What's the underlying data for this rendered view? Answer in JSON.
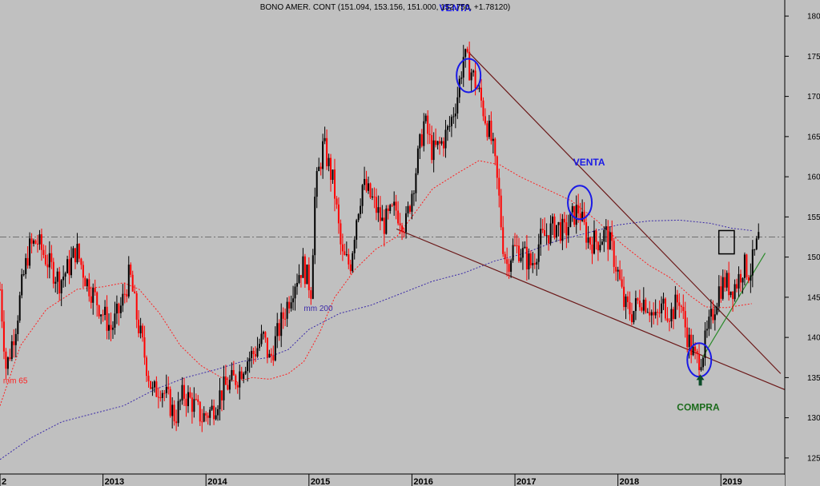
{
  "chart_data": {
    "type": "candlestick",
    "title": "BONO AMER. CONT (151.094, 153.156, 151.000, 152.750, +1.78120)",
    "ylim": [
      123,
      182
    ],
    "y_ticks": [
      125,
      130,
      135,
      140,
      145,
      150,
      155,
      160,
      165,
      170,
      175,
      180
    ],
    "x_ticks": [
      {
        "label": "2",
        "t": 2012.0
      },
      {
        "label": "2013",
        "t": 2013.0
      },
      {
        "label": "2014",
        "t": 2014.0
      },
      {
        "label": "2015",
        "t": 2015.0
      },
      {
        "label": "2016",
        "t": 2016.0
      },
      {
        "label": "2017",
        "t": 2017.0
      },
      {
        "label": "2018",
        "t": 2018.0
      },
      {
        "label": "2019",
        "t": 2019.0
      }
    ],
    "xlim": [
      2012.0,
      2019.62
    ],
    "reference_level": 152.5,
    "price_anchors": [
      [
        2012.0,
        146
      ],
      [
        2012.06,
        136
      ],
      [
        2012.16,
        142
      ],
      [
        2012.22,
        147
      ],
      [
        2012.28,
        151
      ],
      [
        2012.36,
        152
      ],
      [
        2012.48,
        149
      ],
      [
        2012.58,
        147
      ],
      [
        2012.68,
        149
      ],
      [
        2012.74,
        151
      ],
      [
        2012.84,
        147
      ],
      [
        2012.96,
        144
      ],
      [
        2013.08,
        141
      ],
      [
        2013.18,
        144
      ],
      [
        2013.26,
        148
      ],
      [
        2013.32,
        143
      ],
      [
        2013.4,
        138
      ],
      [
        2013.48,
        133
      ],
      [
        2013.56,
        134
      ],
      [
        2013.64,
        132
      ],
      [
        2013.7,
        130
      ],
      [
        2013.78,
        133
      ],
      [
        2013.86,
        132
      ],
      [
        2013.96,
        130
      ],
      [
        2014.06,
        131
      ],
      [
        2014.14,
        133
      ],
      [
        2014.2,
        134
      ],
      [
        2014.3,
        135
      ],
      [
        2014.38,
        137
      ],
      [
        2014.46,
        138
      ],
      [
        2014.56,
        140
      ],
      [
        2014.62,
        137
      ],
      [
        2014.66,
        139
      ],
      [
        2014.76,
        143
      ],
      [
        2014.86,
        147
      ],
      [
        2014.94,
        149
      ],
      [
        2015.02,
        146
      ],
      [
        2015.06,
        158
      ],
      [
        2015.14,
        164
      ],
      [
        2015.24,
        159
      ],
      [
        2015.32,
        150
      ],
      [
        2015.4,
        149
      ],
      [
        2015.46,
        155
      ],
      [
        2015.52,
        159
      ],
      [
        2015.62,
        157
      ],
      [
        2015.72,
        154
      ],
      [
        2015.84,
        156
      ],
      [
        2015.94,
        154
      ],
      [
        2016.04,
        161
      ],
      [
        2016.12,
        167
      ],
      [
        2016.2,
        163
      ],
      [
        2016.28,
        164
      ],
      [
        2016.36,
        166
      ],
      [
        2016.44,
        170
      ],
      [
        2016.5,
        175
      ],
      [
        2016.58,
        173
      ],
      [
        2016.66,
        170
      ],
      [
        2016.72,
        167
      ],
      [
        2016.78,
        164
      ],
      [
        2016.84,
        158
      ],
      [
        2016.88,
        152
      ],
      [
        2016.92,
        149
      ],
      [
        2016.98,
        151
      ],
      [
        2017.04,
        151
      ],
      [
        2017.1,
        150
      ],
      [
        2017.16,
        149
      ],
      [
        2017.24,
        152
      ],
      [
        2017.32,
        153
      ],
      [
        2017.4,
        154
      ],
      [
        2017.48,
        153
      ],
      [
        2017.56,
        155
      ],
      [
        2017.62,
        156
      ],
      [
        2017.66,
        154
      ],
      [
        2017.72,
        152
      ],
      [
        2017.8,
        152
      ],
      [
        2017.88,
        153
      ],
      [
        2017.94,
        151
      ],
      [
        2018.0,
        148
      ],
      [
        2018.06,
        144
      ],
      [
        2018.14,
        143
      ],
      [
        2018.22,
        145
      ],
      [
        2018.3,
        144
      ],
      [
        2018.36,
        142
      ],
      [
        2018.44,
        144
      ],
      [
        2018.52,
        143
      ],
      [
        2018.6,
        145
      ],
      [
        2018.64,
        142
      ],
      [
        2018.7,
        139
      ],
      [
        2018.76,
        137
      ],
      [
        2018.82,
        138
      ],
      [
        2018.86,
        140
      ],
      [
        2018.92,
        143
      ],
      [
        2018.98,
        146
      ],
      [
        2019.04,
        147
      ],
      [
        2019.1,
        146
      ],
      [
        2019.16,
        147
      ],
      [
        2019.22,
        149
      ],
      [
        2019.28,
        148
      ],
      [
        2019.34,
        151
      ],
      [
        2019.38,
        153
      ]
    ],
    "moving_averages": [
      {
        "name": "mm 65",
        "color": "#ff2020",
        "points": [
          [
            2012.0,
            131.5
          ],
          [
            2012.2,
            139
          ],
          [
            2012.45,
            143.5
          ],
          [
            2012.75,
            146
          ],
          [
            2013.0,
            146.3
          ],
          [
            2013.2,
            146.8
          ],
          [
            2013.35,
            146
          ],
          [
            2013.55,
            143
          ],
          [
            2013.75,
            139
          ],
          [
            2013.95,
            136.5
          ],
          [
            2014.15,
            135
          ],
          [
            2014.3,
            134.5
          ],
          [
            2014.45,
            135
          ],
          [
            2014.62,
            134.8
          ],
          [
            2014.8,
            135.5
          ],
          [
            2014.95,
            137
          ],
          [
            2015.1,
            140.5
          ],
          [
            2015.25,
            145
          ],
          [
            2015.45,
            148.5
          ],
          [
            2015.65,
            151
          ],
          [
            2015.85,
            152.5
          ],
          [
            2016.0,
            155
          ],
          [
            2016.2,
            158.5
          ],
          [
            2016.45,
            160.5
          ],
          [
            2016.65,
            162
          ],
          [
            2016.85,
            161.5
          ],
          [
            2017.05,
            160
          ],
          [
            2017.3,
            158.5
          ],
          [
            2017.55,
            157
          ],
          [
            2017.8,
            154.5
          ],
          [
            2018.05,
            151.5
          ],
          [
            2018.3,
            149
          ],
          [
            2018.5,
            147.5
          ],
          [
            2018.7,
            145.2
          ],
          [
            2018.85,
            143.8
          ],
          [
            2019.05,
            143.7
          ],
          [
            2019.2,
            144
          ],
          [
            2019.3,
            144.2
          ]
        ]
      },
      {
        "name": "mm 200",
        "color": "#3b2aa8",
        "points": [
          [
            2012.0,
            124.8
          ],
          [
            2012.3,
            127.5
          ],
          [
            2012.6,
            129.5
          ],
          [
            2012.9,
            130.5
          ],
          [
            2013.2,
            131.5
          ],
          [
            2013.5,
            133.5
          ],
          [
            2013.8,
            135
          ],
          [
            2014.1,
            136
          ],
          [
            2014.35,
            137
          ],
          [
            2014.6,
            137.5
          ],
          [
            2014.8,
            138.5
          ],
          [
            2015.0,
            141
          ],
          [
            2015.3,
            143
          ],
          [
            2015.6,
            144
          ],
          [
            2015.9,
            145.5
          ],
          [
            2016.2,
            147
          ],
          [
            2016.5,
            148
          ],
          [
            2016.8,
            149.5
          ],
          [
            2017.1,
            150.5
          ],
          [
            2017.4,
            152
          ],
          [
            2017.7,
            153
          ],
          [
            2018.0,
            154
          ],
          [
            2018.3,
            154.5
          ],
          [
            2018.6,
            154.6
          ],
          [
            2018.9,
            154.2
          ],
          [
            2019.1,
            153.6
          ],
          [
            2019.3,
            153.3
          ]
        ]
      }
    ],
    "trendlines": [
      {
        "name": "upper-downtrend-line",
        "color": "#6b1818",
        "from": [
          2016.55,
          175.5
        ],
        "to": [
          2019.58,
          135.5
        ]
      },
      {
        "name": "lower-channel-line",
        "color": "#6b1818",
        "from": [
          2015.85,
          153.5
        ],
        "to": [
          2019.62,
          133.5
        ]
      },
      {
        "name": "uptrend-line",
        "color": "#2a8a2a",
        "from": [
          2018.82,
          137.5
        ],
        "to": [
          2019.43,
          150.5
        ]
      }
    ],
    "circles": [
      {
        "name": "venta-1-circle",
        "t": 2016.55,
        "p": 172.6
      },
      {
        "name": "venta-2-circle",
        "t": 2017.63,
        "p": 156.8
      },
      {
        "name": "compra-circle",
        "t": 2018.79,
        "p": 137.2
      }
    ],
    "annotations": [
      {
        "name": "venta-label-1",
        "text": "VENTA",
        "t": 2016.42,
        "p": 180.6,
        "color": "#1a1ae6"
      },
      {
        "name": "venta-label-2",
        "text": "VENTA",
        "t": 2017.72,
        "p": 161.4,
        "color": "#1a1ae6"
      },
      {
        "name": "compra-label",
        "text": "COMPRA",
        "t": 2018.78,
        "p": 130.9,
        "color": "#1b6b1b"
      }
    ],
    "buy_arrow": {
      "t": 2018.8,
      "p": 134.6,
      "color": "#0d4d2a"
    },
    "box": {
      "t0": 2018.98,
      "t1": 2019.13,
      "p0": 150.4,
      "p1": 153.3
    },
    "ma_labels": [
      {
        "text": "mm 65",
        "t": 2012.03,
        "p": 134.3,
        "color": "#ff2020"
      },
      {
        "text": "mm 200",
        "t": 2014.95,
        "p": 143.3,
        "color": "#3b2aa8"
      }
    ]
  }
}
